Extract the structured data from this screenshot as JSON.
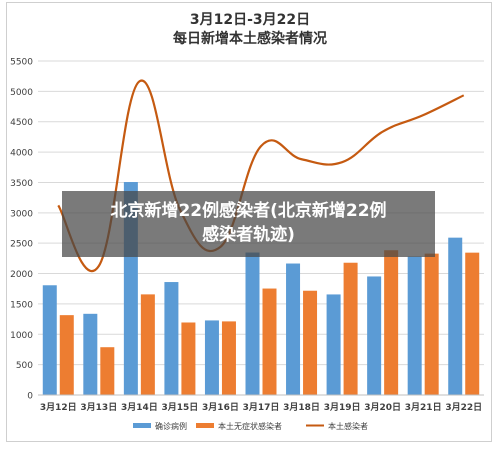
{
  "chart_data": {
    "type": "bar",
    "title": "3月12日-3月22日",
    "subtitle": "每日新增本土感染者情况",
    "categories": [
      "3月12日",
      "3月13日",
      "3月14日",
      "3月15日",
      "3月16日",
      "3月17日",
      "3月18日",
      "3月19日",
      "3月20日",
      "3月21日",
      "3月22日"
    ],
    "ylim": [
      0,
      5500
    ],
    "yticks": [
      0,
      500,
      1000,
      1500,
      2000,
      2500,
      3000,
      3500,
      4000,
      4500,
      5000,
      5500
    ],
    "grid": true,
    "legend_position": "bottom",
    "series": [
      {
        "name": "确诊病例",
        "type": "bar",
        "color": "#5b9bd5",
        "values": [
          1807,
          1337,
          3507,
          1860,
          1228,
          2346,
          2165,
          1656,
          1952,
          2280,
          2591
        ]
      },
      {
        "name": "本土无症状感染者",
        "type": "bar",
        "color": "#ed7d31",
        "values": [
          1315,
          787,
          1657,
          1194,
          1212,
          1753,
          1717,
          2178,
          2384,
          2328,
          2344
        ]
      },
      {
        "name": "本土感染者",
        "type": "line",
        "color": "#c55a11",
        "values": [
          3122,
          2124,
          5164,
          3054,
          2440,
          4099,
          3882,
          3834,
          4336,
          4608,
          4935
        ]
      }
    ]
  },
  "overlay": {
    "line1": "北京新增22例感染者(北京新增22例",
    "line2": "感染者轨迹)"
  }
}
